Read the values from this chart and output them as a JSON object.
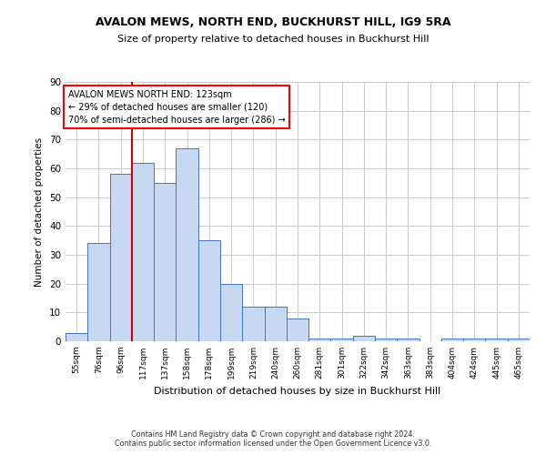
{
  "title1": "AVALON MEWS, NORTH END, BUCKHURST HILL, IG9 5RA",
  "title2": "Size of property relative to detached houses in Buckhurst Hill",
  "xlabel": "Distribution of detached houses by size in Buckhurst Hill",
  "ylabel": "Number of detached properties",
  "footer1": "Contains HM Land Registry data © Crown copyright and database right 2024.",
  "footer2": "Contains public sector information licensed under the Open Government Licence v3.0.",
  "annotation_line1": "AVALON MEWS NORTH END: 123sqm",
  "annotation_line2": "← 29% of detached houses are smaller (120)",
  "annotation_line3": "70% of semi-detached houses are larger (286) →",
  "bar_labels": [
    "55sqm",
    "76sqm",
    "96sqm",
    "117sqm",
    "137sqm",
    "158sqm",
    "178sqm",
    "199sqm",
    "219sqm",
    "240sqm",
    "260sqm",
    "281sqm",
    "301sqm",
    "322sqm",
    "342sqm",
    "363sqm",
    "383sqm",
    "404sqm",
    "424sqm",
    "445sqm",
    "465sqm"
  ],
  "bar_values": [
    3,
    34,
    58,
    62,
    55,
    67,
    35,
    20,
    12,
    12,
    8,
    1,
    1,
    2,
    1,
    1,
    0,
    1,
    1,
    1,
    1
  ],
  "bar_color": "#c6d9f1",
  "bar_edge_color": "#4472c4",
  "vline_color": "#cc0000",
  "vline_x_index": 3,
  "grid_color": "#cccccc",
  "background_color": "#ffffff",
  "ylim": [
    0,
    90
  ],
  "yticks": [
    0,
    10,
    20,
    30,
    40,
    50,
    60,
    70,
    80,
    90
  ]
}
